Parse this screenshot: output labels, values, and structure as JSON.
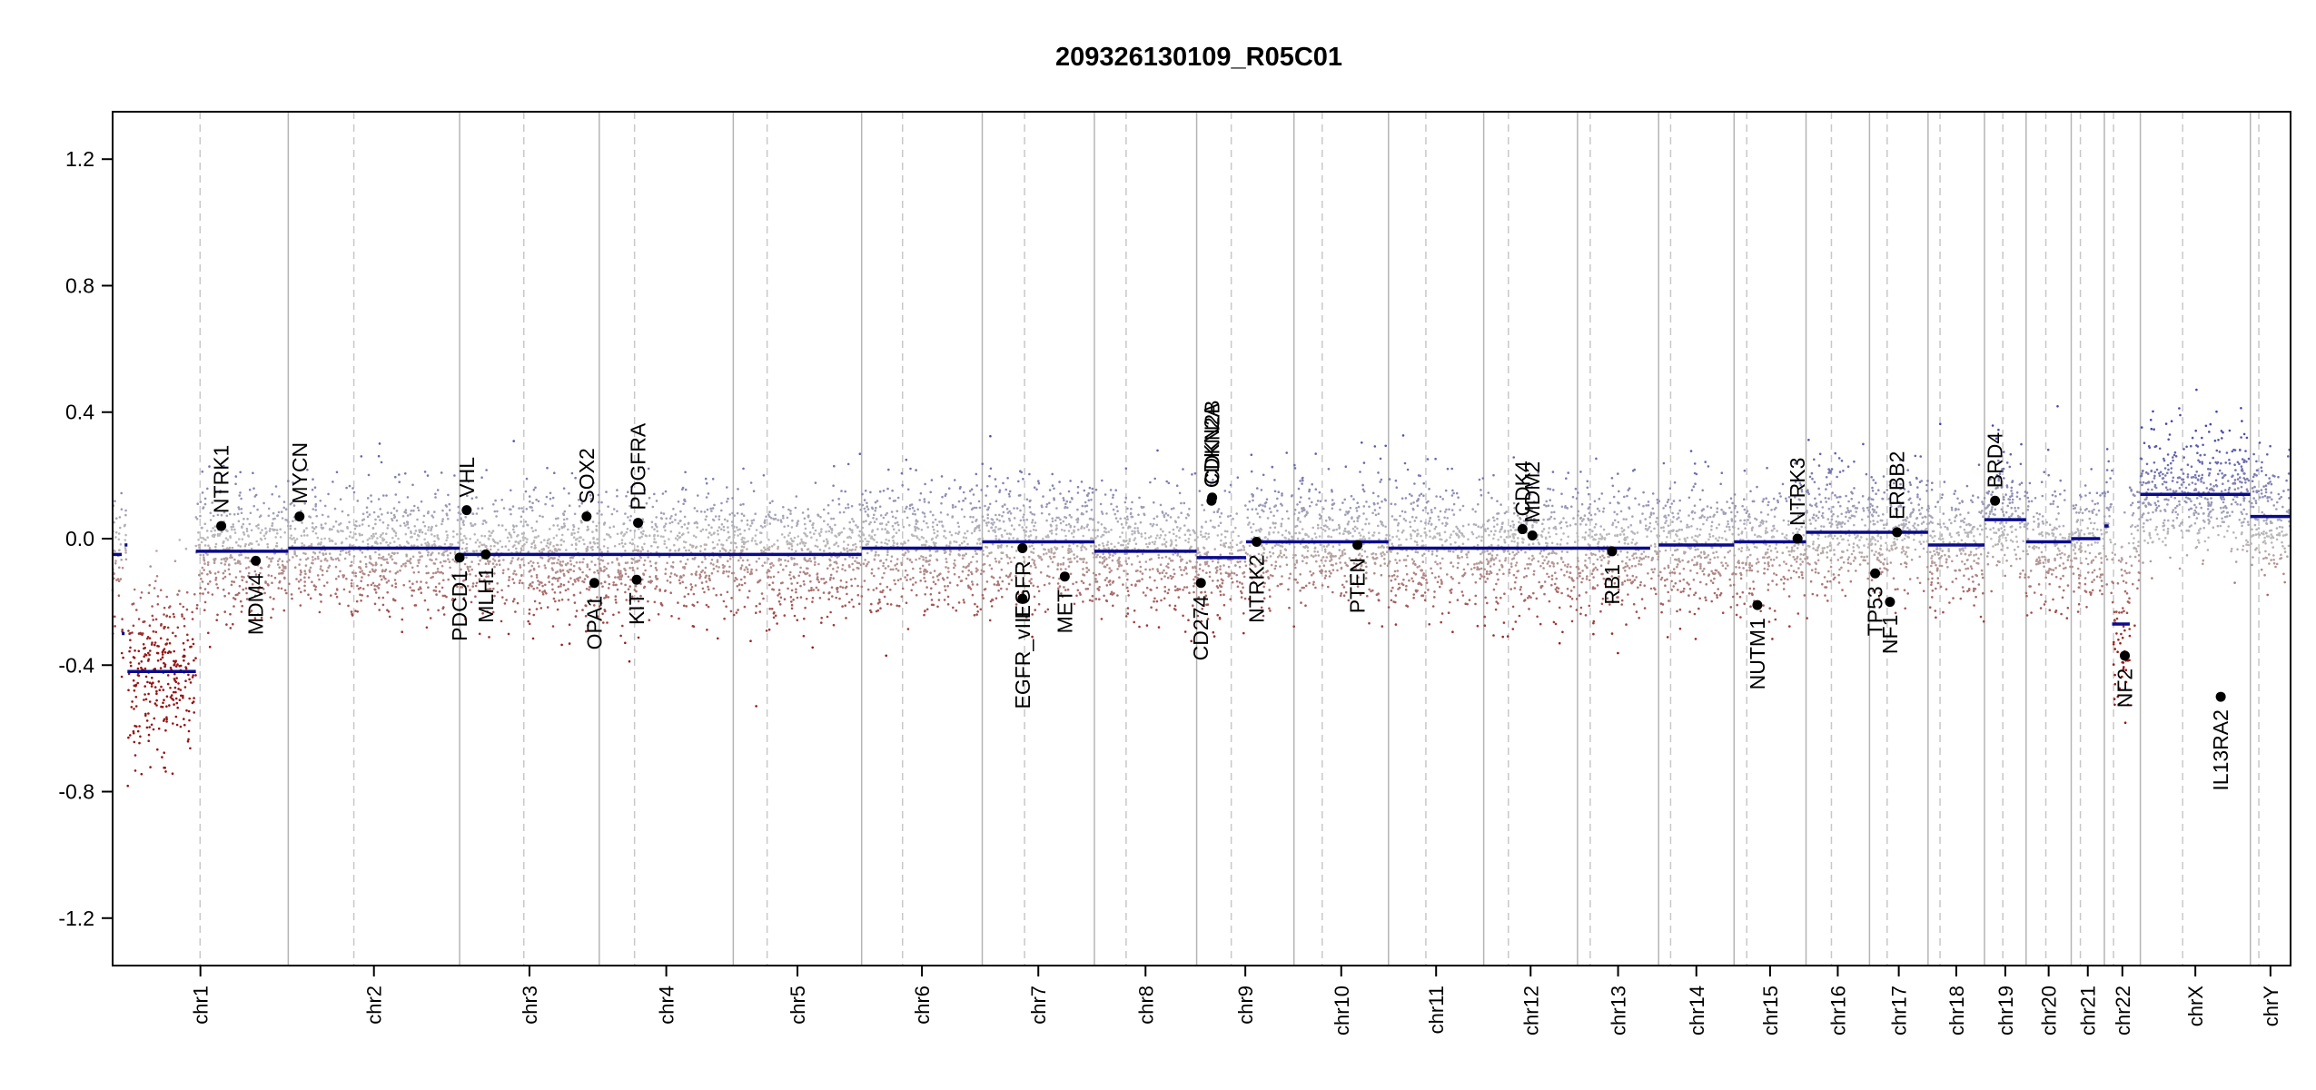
{
  "chart_data": {
    "type": "scatter",
    "title": "209326130109_R05C01",
    "xlabel": "",
    "ylabel": "",
    "ylim": [
      -1.35,
      1.35
    ],
    "y_ticks": [
      -1.2,
      -0.8,
      -0.4,
      0.0,
      0.4,
      0.8,
      1.2
    ],
    "y_tick_labels": [
      "-1.2",
      "-0.8",
      "-0.4",
      "0.0",
      "0.4",
      "0.8",
      "1.2"
    ],
    "x_unit": "Mb (cumulative genome position)",
    "chromosomes": [
      {
        "name": "chr1",
        "start": 0,
        "end": 249
      },
      {
        "name": "chr2",
        "start": 249,
        "end": 492
      },
      {
        "name": "chr3",
        "start": 492,
        "end": 690
      },
      {
        "name": "chr4",
        "start": 690,
        "end": 880
      },
      {
        "name": "chr5",
        "start": 880,
        "end": 1062
      },
      {
        "name": "chr6",
        "start": 1062,
        "end": 1233
      },
      {
        "name": "chr7",
        "start": 1233,
        "end": 1392
      },
      {
        "name": "chr8",
        "start": 1392,
        "end": 1537
      },
      {
        "name": "chr9",
        "start": 1537,
        "end": 1675
      },
      {
        "name": "chr10",
        "start": 1675,
        "end": 1809
      },
      {
        "name": "chr11",
        "start": 1809,
        "end": 1944
      },
      {
        "name": "chr12",
        "start": 1944,
        "end": 2077
      },
      {
        "name": "chr13",
        "start": 2077,
        "end": 2192
      },
      {
        "name": "chr14",
        "start": 2192,
        "end": 2299
      },
      {
        "name": "chr15",
        "start": 2299,
        "end": 2401
      },
      {
        "name": "chr16",
        "start": 2401,
        "end": 2491
      },
      {
        "name": "chr17",
        "start": 2491,
        "end": 2574
      },
      {
        "name": "chr18",
        "start": 2574,
        "end": 2654
      },
      {
        "name": "chr19",
        "start": 2654,
        "end": 2713
      },
      {
        "name": "chr20",
        "start": 2713,
        "end": 2777
      },
      {
        "name": "chr21",
        "start": 2777,
        "end": 2824
      },
      {
        "name": "chr22",
        "start": 2824,
        "end": 2875
      },
      {
        "name": "chrX",
        "start": 2875,
        "end": 3031
      },
      {
        "name": "chrY",
        "start": 3031,
        "end": 3088
      }
    ],
    "centromeres": [
      124,
      342,
      583,
      740,
      928,
      1120,
      1293,
      1437,
      1586,
      1715,
      1862,
      1979,
      2095,
      2209,
      2317,
      2437,
      2516,
      2591,
      2680,
      2741,
      2790,
      2837,
      2935,
      3043
    ],
    "segments": [
      {
        "x0": 0,
        "x1": 13,
        "y": -0.05
      },
      {
        "x0": 13,
        "x1": 17,
        "y": -0.3
      },
      {
        "x0": 17,
        "x1": 21,
        "y": -0.02
      },
      {
        "x0": 21,
        "x1": 118,
        "y": -0.42
      },
      {
        "x0": 118,
        "x1": 249,
        "y": -0.04
      },
      {
        "x0": 249,
        "x1": 492,
        "y": -0.03
      },
      {
        "x0": 492,
        "x1": 690,
        "y": -0.05
      },
      {
        "x0": 690,
        "x1": 1062,
        "y": -0.05
      },
      {
        "x0": 1062,
        "x1": 1233,
        "y": -0.03
      },
      {
        "x0": 1233,
        "x1": 1392,
        "y": -0.01
      },
      {
        "x0": 1392,
        "x1": 1537,
        "y": -0.04
      },
      {
        "x0": 1537,
        "x1": 1607,
        "y": -0.06
      },
      {
        "x0": 1607,
        "x1": 1809,
        "y": -0.01
      },
      {
        "x0": 1809,
        "x1": 2077,
        "y": -0.03
      },
      {
        "x0": 2077,
        "x1": 2180,
        "y": -0.03
      },
      {
        "x0": 2192,
        "x1": 2299,
        "y": -0.02
      },
      {
        "x0": 2299,
        "x1": 2401,
        "y": -0.01
      },
      {
        "x0": 2401,
        "x1": 2574,
        "y": 0.02
      },
      {
        "x0": 2574,
        "x1": 2654,
        "y": -0.02
      },
      {
        "x0": 2654,
        "x1": 2713,
        "y": 0.06
      },
      {
        "x0": 2713,
        "x1": 2777,
        "y": -0.01
      },
      {
        "x0": 2777,
        "x1": 2818,
        "y": 0.0
      },
      {
        "x0": 2824,
        "x1": 2830,
        "y": 0.04
      },
      {
        "x0": 2835,
        "x1": 2860,
        "y": -0.27
      },
      {
        "x0": 2875,
        "x1": 3031,
        "y": 0.14
      },
      {
        "x0": 3031,
        "x1": 3088,
        "y": 0.07
      }
    ],
    "genes": [
      {
        "name": "NTRK1",
        "x": 154,
        "y": 0.04,
        "label": "above"
      },
      {
        "name": "MDM4",
        "x": 203,
        "y": -0.07,
        "label": "below"
      },
      {
        "name": "MYCN",
        "x": 265,
        "y": 0.07,
        "label": "above"
      },
      {
        "name": "VHL",
        "x": 502,
        "y": 0.09,
        "label": "above"
      },
      {
        "name": "PDCD1",
        "x": 492,
        "y": -0.06,
        "label": "below"
      },
      {
        "name": "MLH1",
        "x": 529,
        "y": -0.05,
        "label": "below"
      },
      {
        "name": "SOX2",
        "x": 672,
        "y": 0.07,
        "label": "above"
      },
      {
        "name": "OPA1",
        "x": 683,
        "y": -0.14,
        "label": "below"
      },
      {
        "name": "PDGFRA",
        "x": 745,
        "y": 0.05,
        "label": "above"
      },
      {
        "name": "KIT",
        "x": 743,
        "y": -0.13,
        "label": "below"
      },
      {
        "name": "EGFR",
        "x": 1290,
        "y": -0.03,
        "label": "below"
      },
      {
        "name": "EGFR_vIII",
        "x": 1290,
        "y": -0.19,
        "label": "below"
      },
      {
        "name": "MET",
        "x": 1350,
        "y": -0.12,
        "label": "below"
      },
      {
        "name": "CDKN2A",
        "x": 1558,
        "y": 0.12,
        "label": "above"
      },
      {
        "name": "CDKN2B",
        "x": 1559,
        "y": 0.13,
        "label": "above"
      },
      {
        "name": "CD274",
        "x": 1543,
        "y": -0.14,
        "label": "below"
      },
      {
        "name": "NTRK2",
        "x": 1622,
        "y": -0.01,
        "label": "below"
      },
      {
        "name": "PTEN",
        "x": 1765,
        "y": -0.02,
        "label": "below"
      },
      {
        "name": "CDK4",
        "x": 1999,
        "y": 0.03,
        "label": "above"
      },
      {
        "name": "MDM2",
        "x": 2013,
        "y": 0.01,
        "label": "above"
      },
      {
        "name": "RB1",
        "x": 2126,
        "y": -0.04,
        "label": "below"
      },
      {
        "name": "NUTM1",
        "x": 2332,
        "y": -0.21,
        "label": "below"
      },
      {
        "name": "NTRK3",
        "x": 2389,
        "y": 0.0,
        "label": "above"
      },
      {
        "name": "TP53",
        "x": 2499,
        "y": -0.11,
        "label": "below"
      },
      {
        "name": "NF1",
        "x": 2520,
        "y": -0.2,
        "label": "below"
      },
      {
        "name": "ERBB2",
        "x": 2530,
        "y": 0.02,
        "label": "above"
      },
      {
        "name": "BRD4",
        "x": 2669,
        "y": 0.12,
        "label": "above"
      },
      {
        "name": "NF2",
        "x": 2853,
        "y": -0.37,
        "label": "below"
      },
      {
        "name": "IL13RA2",
        "x": 2989,
        "y": -0.5,
        "label": "below"
      }
    ],
    "colors": {
      "segment": "#0a0a8c",
      "gain": "#5a5aaa",
      "neutral": "#bcbcbc",
      "loss": "#9c1c1c",
      "gene_point": "#000000",
      "chrom_border": "#b4b4b4",
      "centromere": "#c8c8c8"
    },
    "grid": false,
    "legend": "none"
  }
}
